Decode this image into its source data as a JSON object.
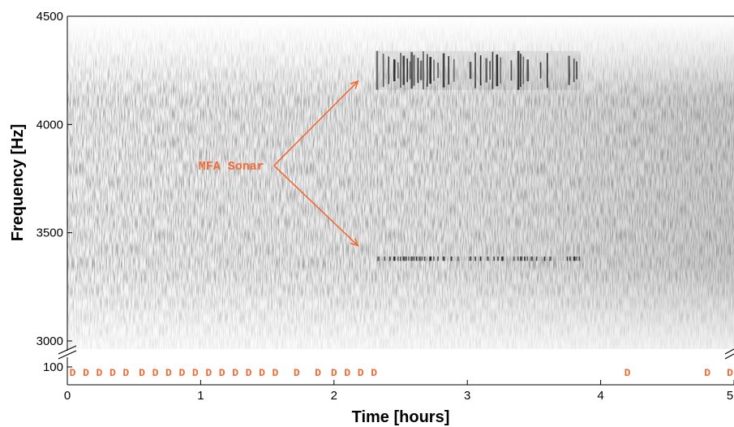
{
  "chart_data": {
    "type": "heatmap",
    "title": "",
    "xlabel": "Time [hours]",
    "ylabel": "Frequency [Hz]",
    "xlim": [
      0,
      5
    ],
    "ylim": [
      2950,
      4500
    ],
    "x_ticks": [
      0,
      1,
      2,
      3,
      4,
      5
    ],
    "y_ticks": [
      3000,
      3500,
      4000,
      4500
    ],
    "y_break_tick": 100,
    "grid": false,
    "colormap": "grayscale",
    "annotation": {
      "text": "MFA Sonar",
      "color": "#f06a35",
      "anchor": {
        "x": 1.55,
        "y": 3810
      },
      "arrow_targets": [
        {
          "x": 2.18,
          "y": 4200
        },
        {
          "x": 2.18,
          "y": 3440
        }
      ]
    },
    "sonar_bands": [
      {
        "name": "upper",
        "y_range": [
          4160,
          4340
        ],
        "x_range": [
          2.32,
          3.85
        ],
        "pings": [
          2.32,
          2.37,
          2.41,
          2.45,
          2.48,
          2.5,
          2.52,
          2.55,
          2.57,
          2.58,
          2.6,
          2.63,
          2.65,
          2.67,
          2.7,
          2.72,
          2.75,
          2.78,
          2.82,
          2.86,
          2.9,
          3.02,
          3.06,
          3.1,
          3.14,
          3.17,
          3.19,
          3.22,
          3.25,
          3.33,
          3.38,
          3.4,
          3.42,
          3.45,
          3.55,
          3.6,
          3.76,
          3.8,
          3.82
        ]
      },
      {
        "name": "lower",
        "y_range": [
          3370,
          3390
        ],
        "x_range": [
          2.32,
          3.87
        ],
        "pings": [
          2.33,
          2.38,
          2.42,
          2.45,
          2.48,
          2.5,
          2.52,
          2.54,
          2.56,
          2.58,
          2.6,
          2.62,
          2.64,
          2.66,
          2.68,
          2.72,
          2.75,
          2.78,
          2.82,
          2.88,
          2.93,
          3.02,
          3.06,
          3.1,
          3.15,
          3.2,
          3.23,
          3.26,
          3.35,
          3.38,
          3.4,
          3.43,
          3.45,
          3.48,
          3.52,
          3.58,
          3.62,
          3.75,
          3.77,
          3.8,
          3.82,
          3.84
        ]
      }
    ],
    "detections": {
      "label": "D",
      "level": 100,
      "color": "#f06a35",
      "x": [
        0.04,
        0.14,
        0.24,
        0.34,
        0.44,
        0.56,
        0.66,
        0.76,
        0.86,
        0.96,
        1.06,
        1.16,
        1.26,
        1.36,
        1.46,
        1.56,
        1.72,
        1.88,
        2.0,
        2.1,
        2.2,
        2.3,
        4.2,
        4.8,
        4.97
      ]
    }
  }
}
